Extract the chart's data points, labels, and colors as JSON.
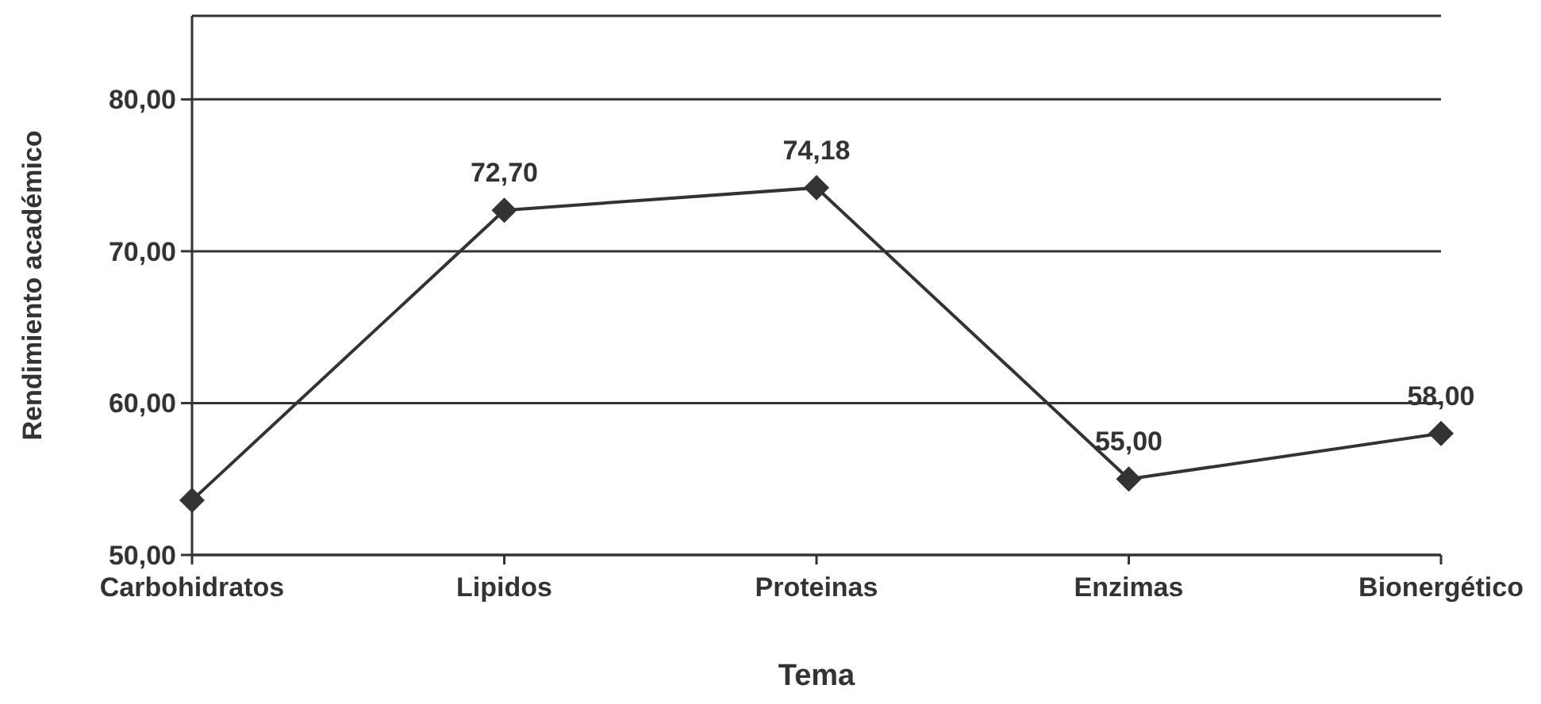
{
  "chart_data": {
    "type": "line",
    "xlabel": "Tema",
    "ylabel": "Rendimiento académico",
    "categories": [
      "Carbohidratos",
      "Lipidos",
      "Proteinas",
      "Enzimas",
      "Bionergético"
    ],
    "series": [
      {
        "color": "#333333",
        "values": [
          53.6,
          72.7,
          74.18,
          55.0,
          58.0
        ],
        "value_labels": [
          null,
          "72,70",
          "74,18",
          "55,00",
          "58,00"
        ]
      }
    ],
    "ylim": [
      50,
      85.5
    ],
    "yticks": [
      {
        "value": 50,
        "label": "50,00"
      },
      {
        "value": 60,
        "label": "60,00"
      },
      {
        "value": 70,
        "label": "70,00"
      },
      {
        "value": 80,
        "label": "80,00"
      }
    ],
    "grid": "y",
    "marker": "diamond",
    "line_style": "solid"
  }
}
